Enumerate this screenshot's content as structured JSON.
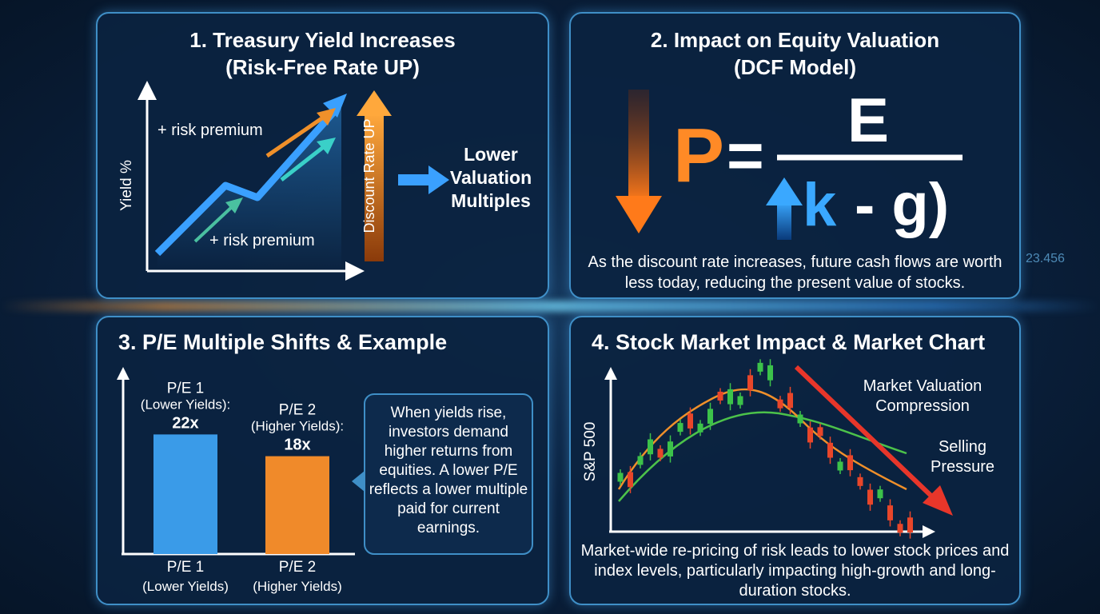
{
  "background_label": "23.456",
  "panels": [
    {
      "title": "1. Treasury Yield Increases",
      "subtitle": "(Risk-Free Rate UP)",
      "y_axis_label": "Yield %",
      "labels": [
        "+ risk premium",
        "+ risk premium"
      ],
      "arrow_label": "Discount Rate UP",
      "result": "Lower Valuation Multiples"
    },
    {
      "title": "2. Impact on Equity Valuation",
      "subtitle": "(DCF Model)",
      "formula": {
        "lhs": "P",
        "equals": "=",
        "numerator": "E",
        "denominator_k": "k",
        "denominator_rest": "- g)"
      },
      "caption": "As the discount rate increases, future cash flows are worth less today, reducing the present value of stocks."
    },
    {
      "title": "3. P/E Multiple Shifts & Example",
      "chart": {
        "type": "bar",
        "bar_headers": [
          "P/E 1",
          "P/E 2"
        ],
        "bar_notes": [
          "(Lower Yields):",
          "(Higher Yields):"
        ],
        "values": [
          22,
          18
        ],
        "value_labels": [
          "22x",
          "18x"
        ],
        "colors": [
          "#3a9be8",
          "#f08a2a"
        ],
        "categories": [
          "P/E 1",
          "P/E 2"
        ],
        "category_notes": [
          "(Lower Yields)",
          "(Higher Yields)"
        ]
      },
      "note": "When yields rise, investors demand higher returns from equities. A lower P/E reflects a lower multiple paid for current earnings."
    },
    {
      "title": "4. Stock Market Impact & Market Chart",
      "y_axis_label": "S&P 500",
      "annotations": [
        "Market Valuation Compression",
        "Selling Pressure"
      ],
      "caption": "Market-wide re-pricing of risk leads to lower stock prices and index levels, particularly impacting high-growth and long-duration stocks."
    }
  ]
}
